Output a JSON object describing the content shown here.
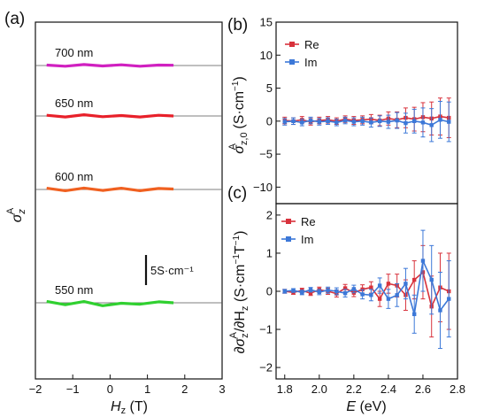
{
  "chart_data": [
    {
      "panel": "(a)",
      "type": "line",
      "xlabel": "H_z (T)",
      "ylabel": "σ_z^A",
      "xlim": [
        -2,
        3
      ],
      "x_ticks": [
        "−2",
        "−1",
        "0",
        "1",
        "2",
        "3"
      ],
      "scale_bar": "5S·cm⁻¹",
      "scale_bar_value": 5,
      "series": [
        {
          "name": "700 nm",
          "color": "#d020c0",
          "x": [
            -1.7,
            -1.2,
            -0.7,
            -0.2,
            0.3,
            0.8,
            1.3,
            1.7
          ],
          "values": [
            0.02,
            -0.03,
            0.04,
            -0.02,
            0.03,
            -0.03,
            0.02,
            0.01
          ]
        },
        {
          "name": "650 nm",
          "color": "#e8202a",
          "x": [
            -1.7,
            -1.2,
            -0.7,
            -0.2,
            0.3,
            0.8,
            1.3,
            1.7
          ],
          "values": [
            0.03,
            -0.04,
            0.05,
            -0.03,
            0.02,
            -0.04,
            0.03,
            0.0
          ]
        },
        {
          "name": "600 nm",
          "color": "#f06020",
          "x": [
            -1.7,
            -1.2,
            -0.7,
            -0.2,
            0.3,
            0.8,
            1.3,
            1.7
          ],
          "values": [
            0.05,
            -0.05,
            0.06,
            -0.04,
            0.05,
            -0.05,
            0.04,
            0.02
          ]
        },
        {
          "name": "550 nm",
          "color": "#30d030",
          "x": [
            -1.7,
            -1.2,
            -0.7,
            -0.2,
            0.3,
            0.8,
            1.3,
            1.7
          ],
          "values": [
            0.06,
            -0.08,
            0.05,
            -0.12,
            -0.02,
            -0.06,
            0.04,
            0.0
          ]
        }
      ]
    },
    {
      "panel": "(b)",
      "type": "line",
      "xlabel": "",
      "ylabel": "σ_z,0^A (S·cm⁻¹)",
      "ylim": [
        -12.5,
        15
      ],
      "xlim": [
        1.75,
        2.8
      ],
      "y_ticks": [
        15,
        10,
        5,
        0,
        -5,
        -10
      ],
      "legend_position": "top-left",
      "series": [
        {
          "name": "Re",
          "color": "#d8323c",
          "x": [
            1.8,
            1.85,
            1.9,
            1.95,
            2.0,
            2.05,
            2.1,
            2.15,
            2.2,
            2.25,
            2.3,
            2.35,
            2.4,
            2.45,
            2.5,
            2.55,
            2.6,
            2.65,
            2.7,
            2.75
          ],
          "values": [
            0.1,
            0.0,
            0.2,
            -0.1,
            0.1,
            0.2,
            0.0,
            0.3,
            0.1,
            0.2,
            0.3,
            0.1,
            0.4,
            0.2,
            0.5,
            0.3,
            0.6,
            0.4,
            0.7,
            0.5
          ],
          "errors": [
            0.5,
            0.5,
            0.5,
            0.5,
            0.5,
            0.5,
            0.5,
            0.5,
            0.6,
            0.6,
            0.7,
            0.8,
            1.0,
            1.2,
            1.5,
            1.8,
            2.2,
            2.5,
            2.8,
            3.0
          ]
        },
        {
          "name": "Im",
          "color": "#3c78d8",
          "x": [
            1.8,
            1.85,
            1.9,
            1.95,
            2.0,
            2.05,
            2.1,
            2.15,
            2.2,
            2.25,
            2.3,
            2.35,
            2.4,
            2.45,
            2.5,
            2.55,
            2.6,
            2.65,
            2.7,
            2.75
          ],
          "values": [
            -0.1,
            0.0,
            -0.2,
            0.1,
            -0.1,
            0.0,
            -0.2,
            0.1,
            -0.1,
            0.0,
            -0.2,
            0.0,
            -0.1,
            0.1,
            -0.3,
            0.0,
            -0.2,
            -0.6,
            0.2,
            -0.1
          ],
          "errors": [
            0.5,
            0.5,
            0.5,
            0.5,
            0.5,
            0.5,
            0.5,
            0.5,
            0.6,
            0.6,
            0.7,
            0.8,
            1.0,
            1.2,
            1.5,
            1.8,
            2.2,
            2.5,
            2.8,
            3.0
          ]
        }
      ]
    },
    {
      "panel": "(c)",
      "type": "line",
      "xlabel": "E (eV)",
      "ylabel": "∂σ_z^A/∂H_z (S·cm⁻¹T⁻¹)",
      "ylim": [
        -2.3,
        2.3
      ],
      "xlim": [
        1.75,
        2.8
      ],
      "x_ticks": [
        1.8,
        2.0,
        2.2,
        2.4,
        2.6,
        2.8
      ],
      "y_ticks": [
        2,
        1,
        0,
        -1,
        -2
      ],
      "legend_position": "top-right",
      "series": [
        {
          "name": "Re",
          "color": "#d8323c",
          "x": [
            1.8,
            1.85,
            1.9,
            1.95,
            2.0,
            2.05,
            2.1,
            2.15,
            2.2,
            2.25,
            2.3,
            2.35,
            2.4,
            2.45,
            2.5,
            2.55,
            2.6,
            2.65,
            2.7,
            2.75
          ],
          "values": [
            0.0,
            -0.03,
            0.02,
            -0.05,
            0.04,
            0.0,
            -0.06,
            0.08,
            -0.04,
            0.05,
            0.1,
            -0.2,
            0.2,
            0.15,
            -0.1,
            0.3,
            0.5,
            -0.4,
            0.1,
            0.0
          ],
          "errors": [
            0.05,
            0.05,
            0.06,
            0.06,
            0.07,
            0.08,
            0.09,
            0.1,
            0.1,
            0.12,
            0.15,
            0.2,
            0.25,
            0.3,
            0.4,
            0.5,
            0.7,
            0.8,
            0.9,
            1.0
          ]
        },
        {
          "name": "Im",
          "color": "#3c78d8",
          "x": [
            1.8,
            1.85,
            1.9,
            1.95,
            2.0,
            2.05,
            2.1,
            2.15,
            2.2,
            2.25,
            2.3,
            2.35,
            2.4,
            2.45,
            2.5,
            2.55,
            2.6,
            2.65,
            2.7,
            2.75
          ],
          "values": [
            0.0,
            0.02,
            -0.03,
            0.04,
            -0.02,
            0.03,
            0.0,
            -0.05,
            0.06,
            -0.08,
            -0.1,
            0.15,
            -0.2,
            -0.1,
            0.2,
            -0.6,
            0.8,
            0.3,
            -0.5,
            -0.2
          ],
          "errors": [
            0.05,
            0.05,
            0.06,
            0.06,
            0.07,
            0.08,
            0.09,
            0.1,
            0.1,
            0.12,
            0.15,
            0.2,
            0.25,
            0.3,
            0.4,
            0.5,
            0.8,
            0.9,
            1.0,
            1.0
          ]
        }
      ]
    }
  ]
}
